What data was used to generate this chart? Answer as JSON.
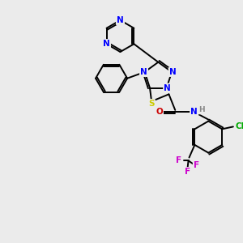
{
  "background_color": "#ebebeb",
  "atom_colors": {
    "N": "#0000ff",
    "O": "#cc0000",
    "S": "#cccc00",
    "Cl": "#00aa00",
    "F": "#cc00cc",
    "C": "#000000",
    "H": "#888888"
  },
  "lw": 1.4,
  "fs": 7.5,
  "fs_small": 6.5
}
